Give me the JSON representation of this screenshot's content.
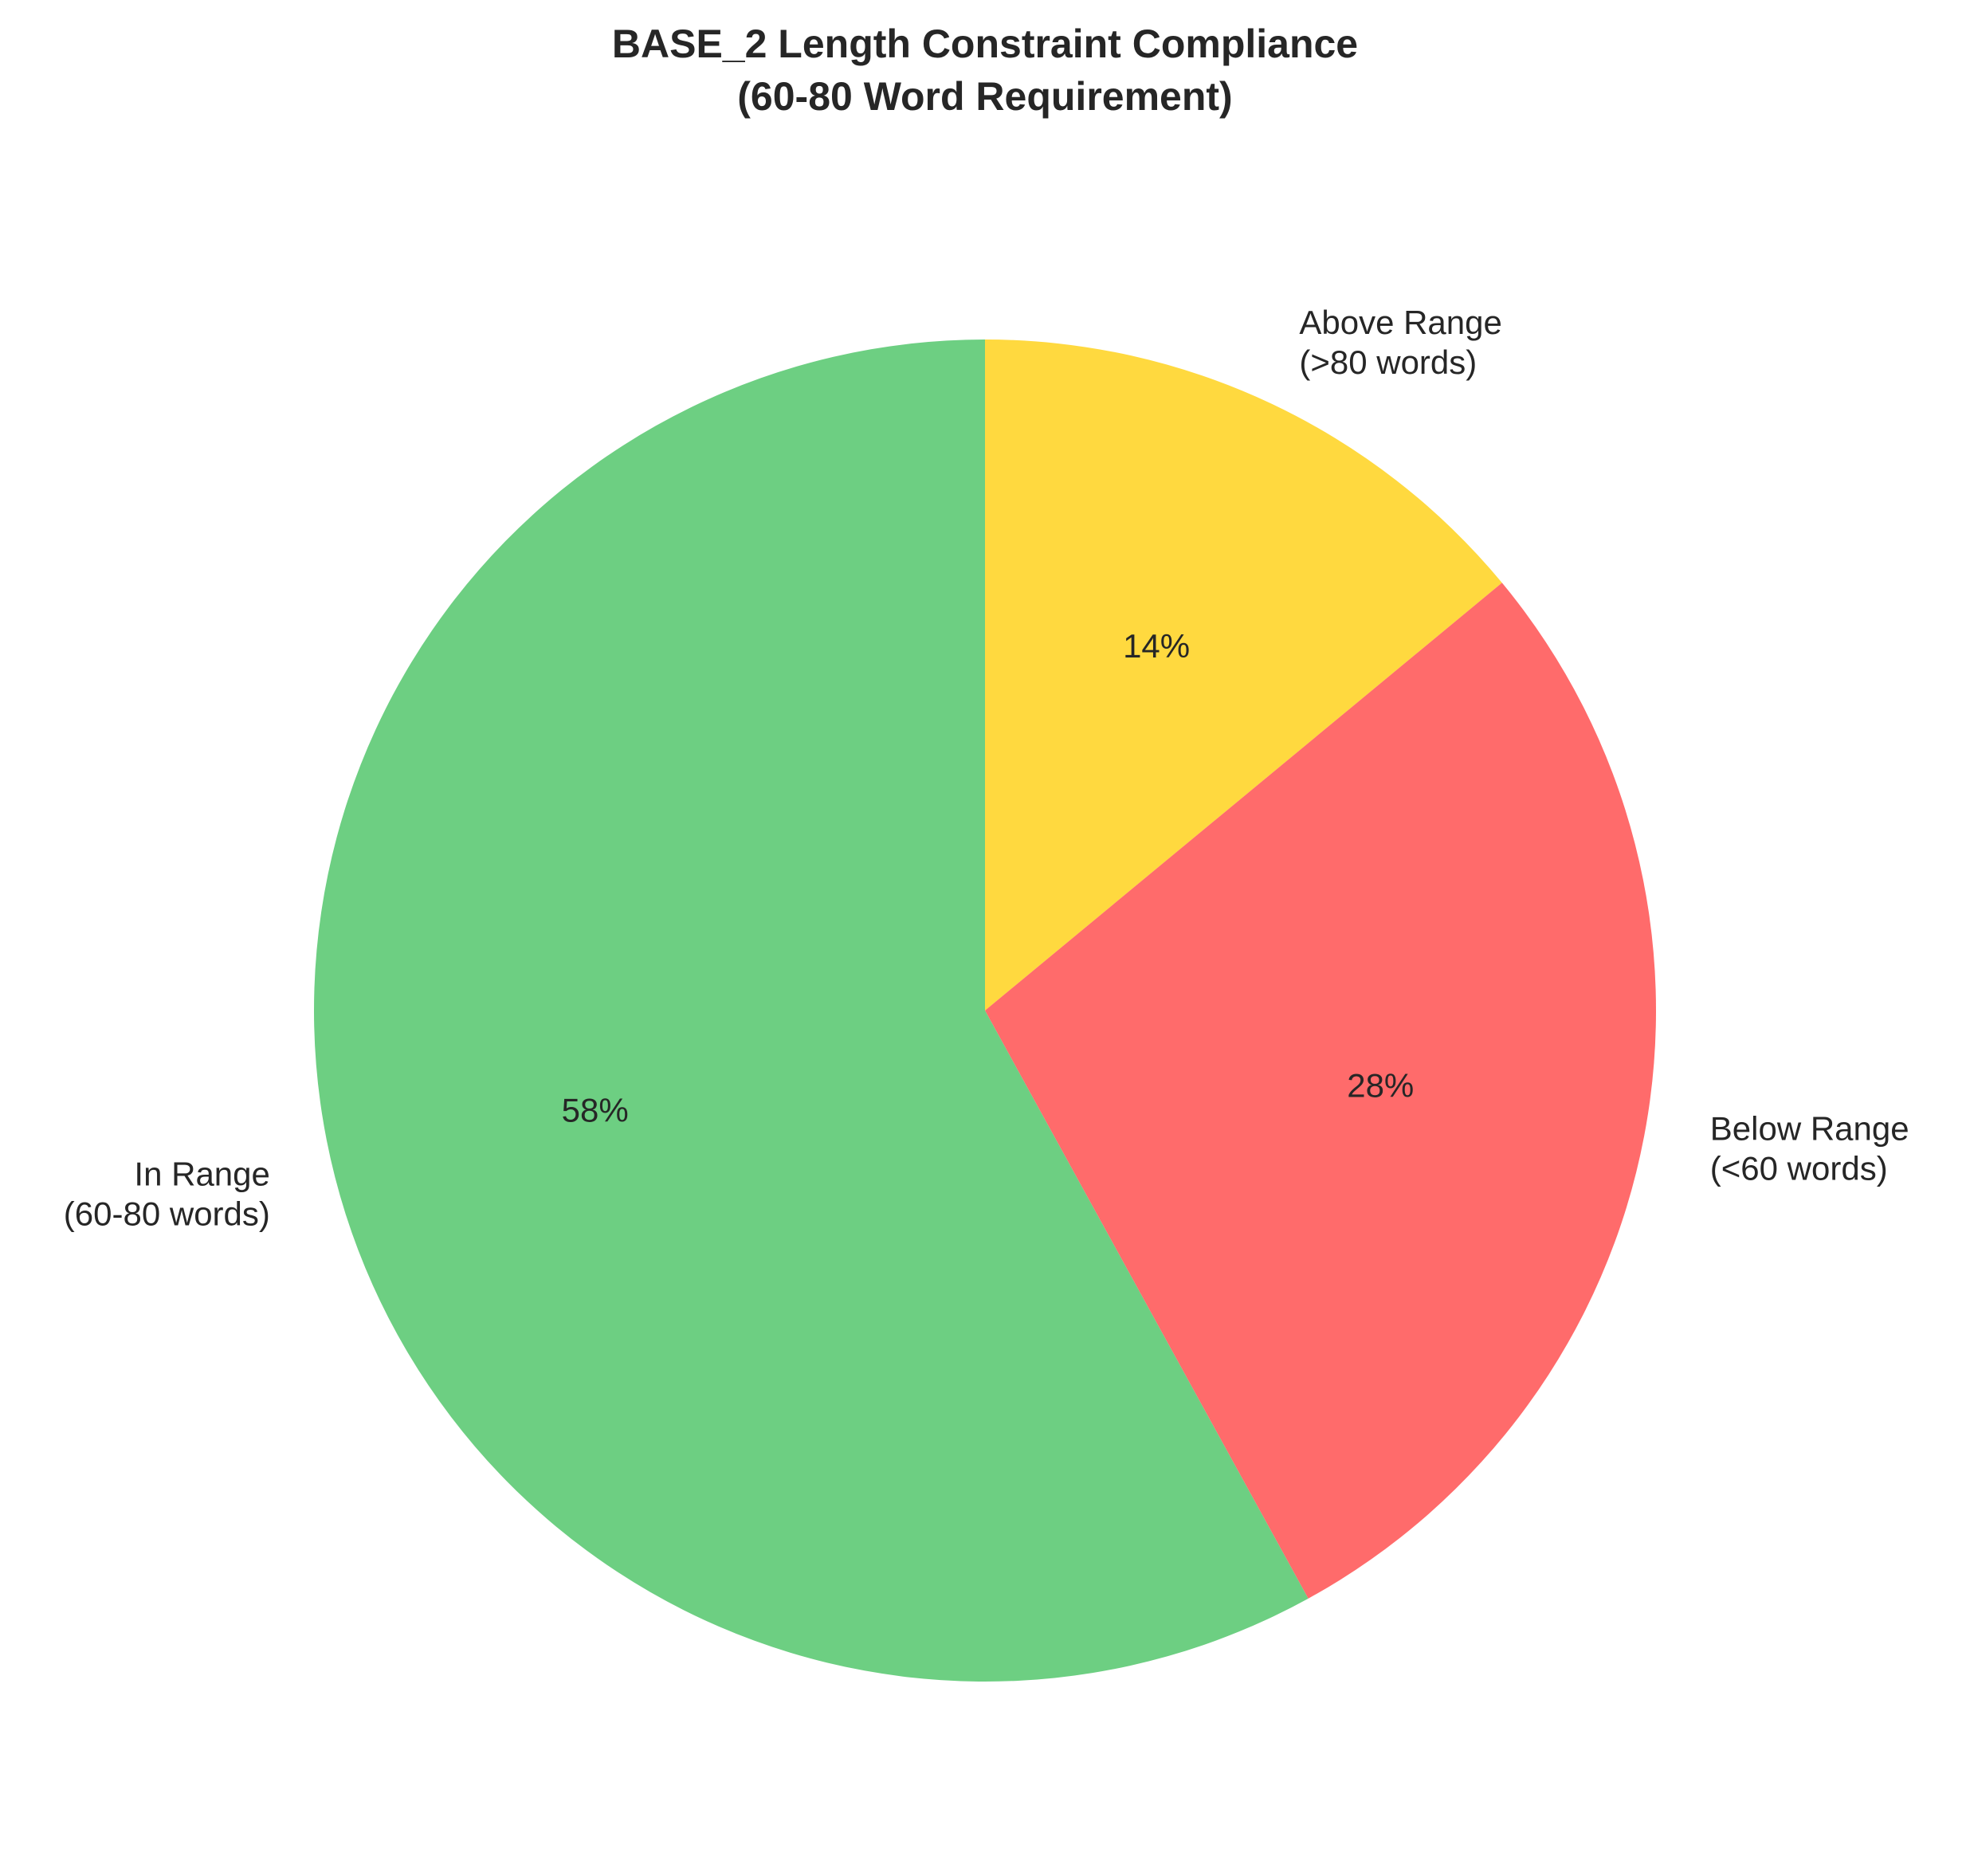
{
  "chart_data": {
    "type": "pie",
    "title": "BASE_2 Length Constraint Compliance",
    "subtitle": "(60-80 Word Requirement)",
    "start_angle_deg": 90,
    "direction": "clockwise-from-top-as-drawn",
    "slices": [
      {
        "label_line1": "Above Range",
        "label_line2": "(>80 words)",
        "value": 14,
        "pct_label": "14%",
        "color": "#FFD93F"
      },
      {
        "label_line1": "Below Range",
        "label_line2": "(<60 words)",
        "value": 28,
        "pct_label": "28%",
        "color": "#FF6B6B"
      },
      {
        "label_line1": "In Range",
        "label_line2": "(60-80 words)",
        "value": 58,
        "pct_label": "58%",
        "color": "#6DCF82"
      }
    ]
  }
}
